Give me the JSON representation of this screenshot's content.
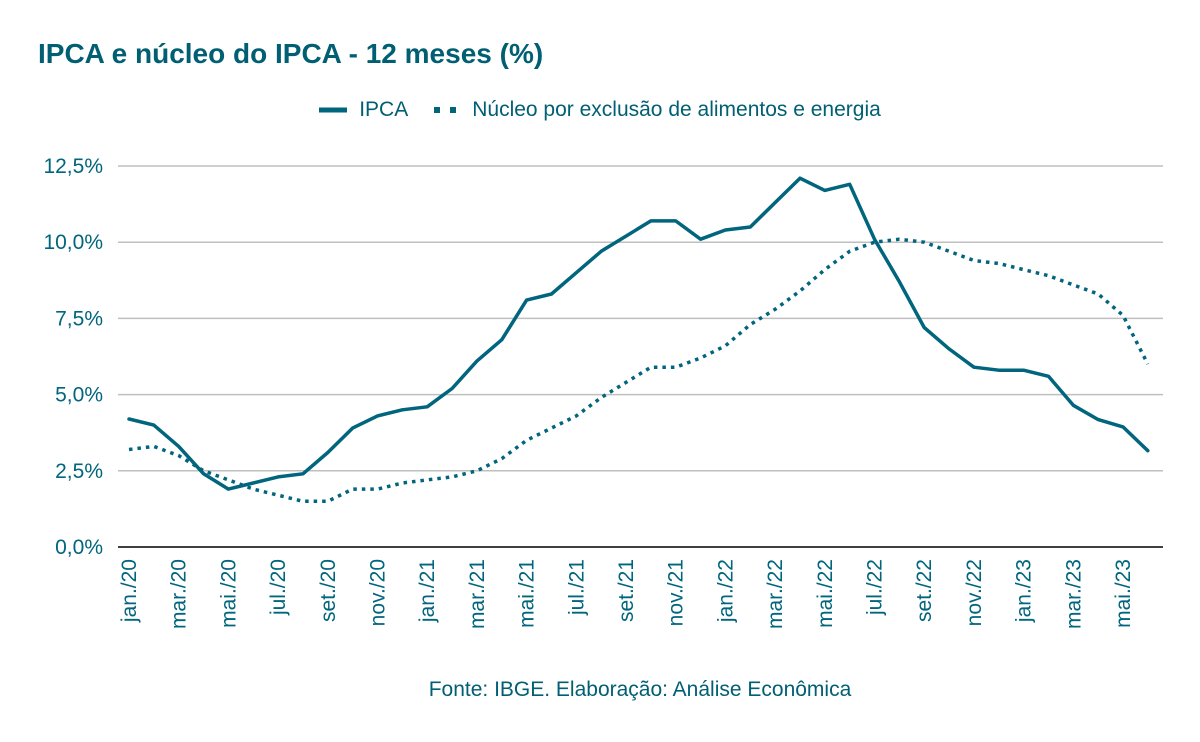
{
  "colors": {
    "primary": "#00657d",
    "grid": "#bfbfbf",
    "axis": "#000000"
  },
  "chart_data": {
    "type": "line",
    "title": "IPCA e núcleo do IPCA - 12 meses (%)",
    "legend_position": "top",
    "grid": true,
    "ylim": [
      0,
      12.5
    ],
    "yticks": [
      "0,0%",
      "2,5%",
      "5,0%",
      "7,5%",
      "10,0%",
      "12,5%"
    ],
    "ytick_values": [
      0,
      2.5,
      5,
      7.5,
      10,
      12.5
    ],
    "months": [
      "jan./20",
      "fev./20",
      "mar./20",
      "abr./20",
      "mai./20",
      "jun./20",
      "jul./20",
      "ago./20",
      "set./20",
      "out./20",
      "nov./20",
      "dez./20",
      "jan./21",
      "fev./21",
      "mar./21",
      "abr./21",
      "mai./21",
      "jun./21",
      "jul./21",
      "ago./21",
      "set./21",
      "out./21",
      "nov./21",
      "dez./21",
      "jan./22",
      "fev./22",
      "mar./22",
      "abr./22",
      "mai./22",
      "jun./22",
      "jul./22",
      "ago./22",
      "set./22",
      "out./22",
      "nov./22",
      "dez./22",
      "jan./23",
      "fev./23",
      "mar./23",
      "abr./23",
      "mai./23",
      "jun./23"
    ],
    "xtick_labels": [
      "jan./20",
      "mar./20",
      "mai./20",
      "jul./20",
      "set./20",
      "nov./20",
      "jan./21",
      "mar./21",
      "mai./21",
      "jul./21",
      "set./21",
      "nov./21",
      "jan./22",
      "mar./22",
      "mai./22",
      "jul./22",
      "set./22",
      "nov./22",
      "jan./23",
      "mar./23",
      "mai./23"
    ],
    "series": [
      {
        "name": "IPCA",
        "style": "solid",
        "values": [
          4.2,
          4.0,
          3.3,
          2.4,
          1.9,
          2.1,
          2.3,
          2.4,
          3.1,
          3.9,
          4.3,
          4.5,
          4.6,
          5.2,
          6.1,
          6.8,
          8.1,
          8.3,
          9.0,
          9.7,
          10.2,
          10.7,
          10.7,
          10.1,
          10.4,
          10.5,
          11.3,
          12.1,
          11.7,
          11.9,
          10.1,
          8.7,
          7.2,
          6.5,
          5.9,
          5.8,
          5.8,
          5.6,
          4.65,
          4.18,
          3.94,
          3.16
        ]
      },
      {
        "name": "Núcleo por exclusão de alimentos e energia",
        "style": "dotted",
        "values": [
          3.2,
          3.3,
          3.0,
          2.5,
          2.2,
          1.9,
          1.7,
          1.5,
          1.5,
          1.9,
          1.9,
          2.1,
          2.2,
          2.3,
          2.5,
          2.9,
          3.5,
          3.9,
          4.3,
          4.9,
          5.4,
          5.9,
          5.9,
          6.2,
          6.6,
          7.3,
          7.8,
          8.4,
          9.1,
          9.7,
          10.0,
          10.1,
          10.0,
          9.7,
          9.4,
          9.3,
          9.1,
          8.9,
          8.6,
          8.3,
          7.6,
          6.0
        ]
      }
    ]
  },
  "source_text": "Fonte: IBGE. Elaboração: Análise Econômica"
}
